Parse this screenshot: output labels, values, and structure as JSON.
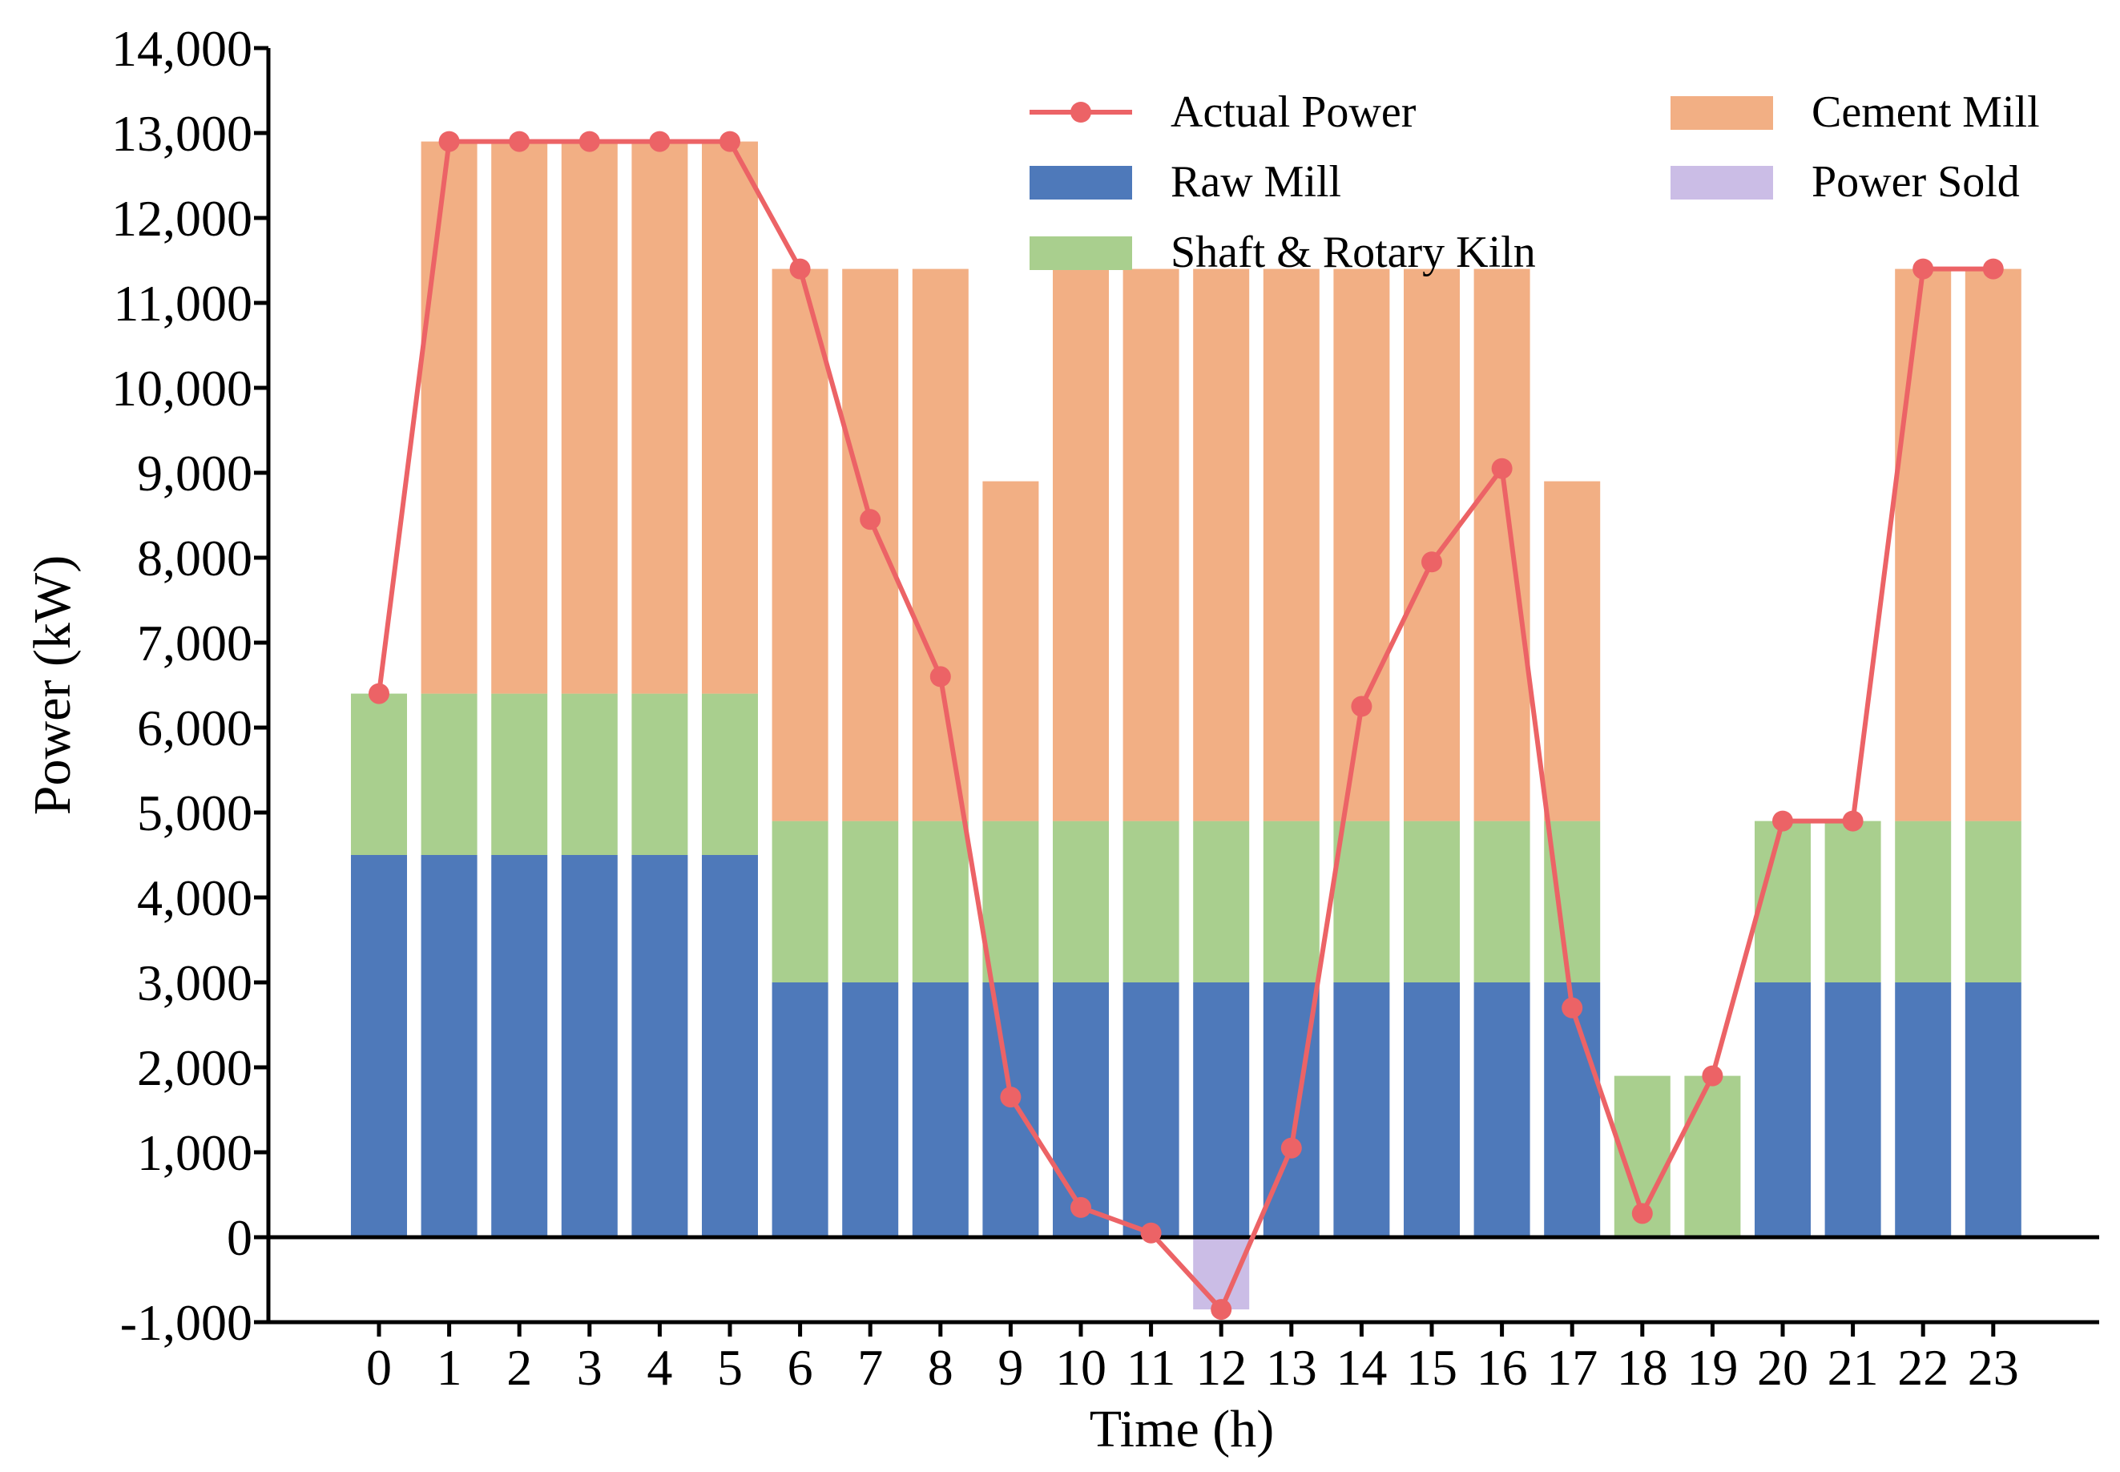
{
  "chart_data": {
    "type": "bar",
    "stacked": true,
    "categories": [
      "0",
      "1",
      "2",
      "3",
      "4",
      "5",
      "6",
      "7",
      "8",
      "9",
      "10",
      "11",
      "12",
      "13",
      "14",
      "15",
      "16",
      "17",
      "18",
      "19",
      "20",
      "21",
      "22",
      "23"
    ],
    "series": [
      {
        "name": "Raw Mill",
        "kind": "bar",
        "color": "#4e79ba",
        "values": [
          4500,
          4500,
          4500,
          4500,
          4500,
          4500,
          3000,
          3000,
          3000,
          3000,
          3000,
          3000,
          3000,
          3000,
          3000,
          3000,
          3000,
          3000,
          0,
          0,
          3000,
          3000,
          3000,
          3000
        ]
      },
      {
        "name": "Shaft & Rotary Kiln",
        "kind": "bar",
        "color": "#a9cf8e",
        "values": [
          1900,
          1900,
          1900,
          1900,
          1900,
          1900,
          1900,
          1900,
          1900,
          1900,
          1900,
          1900,
          1900,
          1900,
          1900,
          1900,
          1900,
          1900,
          1900,
          1900,
          1900,
          1900,
          1900,
          1900
        ]
      },
      {
        "name": "Cement Mill",
        "kind": "bar",
        "color": "#f2af84",
        "values": [
          0,
          6500,
          6500,
          6500,
          6500,
          6500,
          6500,
          6500,
          6500,
          4000,
          6500,
          6500,
          6500,
          6500,
          6500,
          6500,
          6500,
          4000,
          0,
          0,
          0,
          0,
          6500,
          6500
        ]
      },
      {
        "name": "Power Sold",
        "kind": "bar",
        "color": "#cbbde6",
        "values": [
          0,
          0,
          0,
          0,
          0,
          0,
          0,
          0,
          0,
          0,
          0,
          0,
          -850,
          0,
          0,
          0,
          0,
          0,
          0,
          0,
          0,
          0,
          0,
          0
        ]
      },
      {
        "name": "Actual Power",
        "kind": "line",
        "color": "#ec6366",
        "values": [
          6400,
          12900,
          12900,
          12900,
          12900,
          12900,
          11400,
          8450,
          6600,
          1650,
          350,
          50,
          -850,
          1050,
          6250,
          7950,
          9050,
          2700,
          280,
          1900,
          4900,
          4900,
          11400,
          11400
        ]
      }
    ],
    "legend_order": [
      "Actual Power",
      "Raw Mill",
      "Shaft & Rotary Kiln",
      "Cement Mill",
      "Power Sold"
    ],
    "xlabel": "Time (h)",
    "ylabel": "Power (kW)",
    "ylim": [
      -1000,
      14000
    ],
    "yticks": [
      -1000,
      0,
      1000,
      2000,
      3000,
      4000,
      5000,
      6000,
      7000,
      8000,
      9000,
      10000,
      11000,
      12000,
      13000,
      14000
    ],
    "ytick_labels": [
      "-1,000",
      "0",
      "1,000",
      "2,000",
      "3,000",
      "4,000",
      "5,000",
      "6,000",
      "7,000",
      "8,000",
      "9,000",
      "10,000",
      "11,000",
      "12,000",
      "13,000",
      "14,000"
    ],
    "grid": false,
    "legend_position": "top-right"
  }
}
